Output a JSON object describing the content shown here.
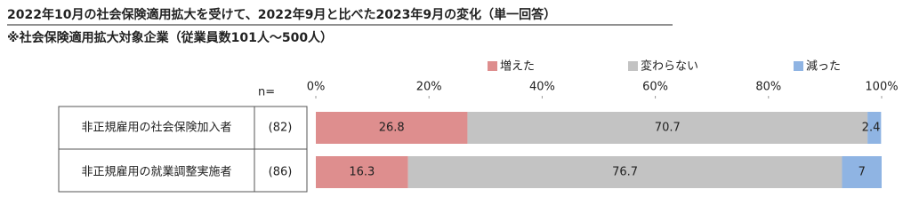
{
  "chart_data": {
    "type": "stacked_bar_horizontal",
    "title": "2022年10月の社会保険適用拡大を受けて、2022年9月と比べた2023年9月の変化（単一回答）",
    "subtitle": "※社会保険適用拡大対象企業（従業員数101人～500人）",
    "n_label": "n=",
    "categories": [
      "非正規雇用の社会保険加入者",
      "非正規雇用の就業調整実施者"
    ],
    "n_values": [
      "(82)",
      "(86)"
    ],
    "series": [
      {
        "name": "増えた",
        "color": "#de8e8e",
        "values": [
          26.8,
          16.3
        ]
      },
      {
        "name": "変わらない",
        "color": "#c3c3c3",
        "values": [
          70.7,
          76.7
        ]
      },
      {
        "name": "減った",
        "color": "#8fb4e3",
        "values": [
          2.4,
          7.0
        ]
      }
    ],
    "xlim": [
      0,
      100
    ],
    "xticks": [
      {
        "value": 0,
        "label": "0%"
      },
      {
        "value": 20,
        "label": "20%"
      },
      {
        "value": 40,
        "label": "40%"
      },
      {
        "value": 60,
        "label": "60%"
      },
      {
        "value": 80,
        "label": "80%"
      },
      {
        "value": 100,
        "label": "100%"
      }
    ],
    "grid": false
  }
}
